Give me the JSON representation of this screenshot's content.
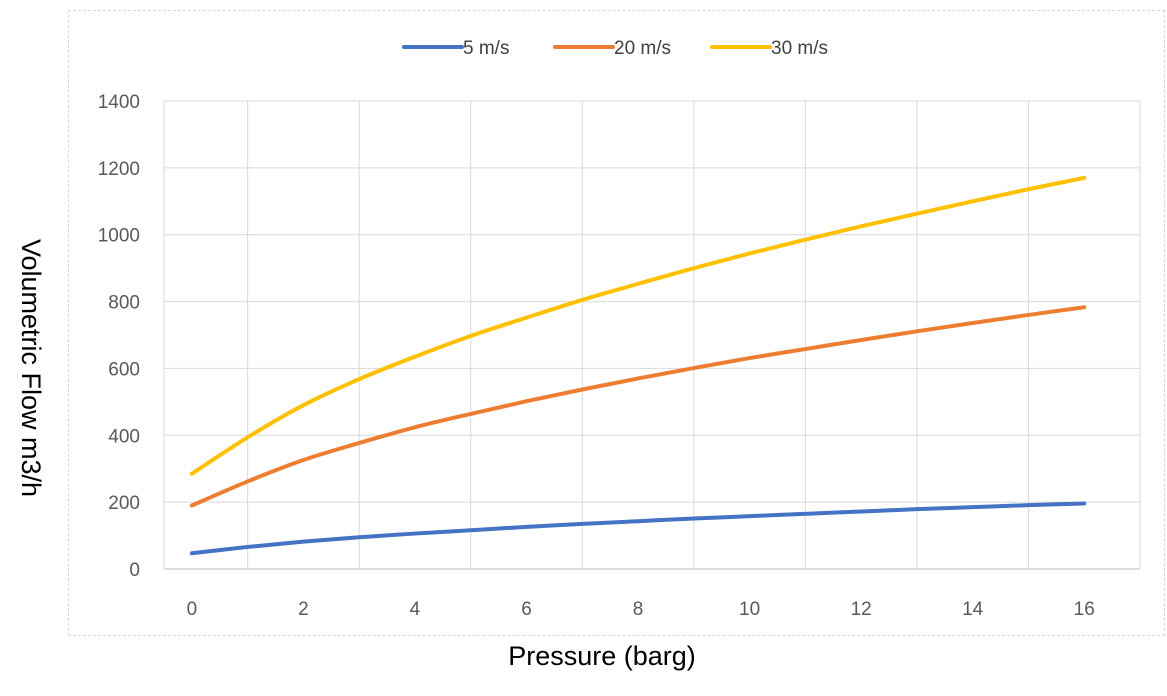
{
  "chart_data": {
    "type": "line",
    "xlabel": "Pressure (barg)",
    "ylabel": "Volumetric Flow m3/h",
    "xlim": [
      -0.5,
      17
    ],
    "ylim": [
      0,
      1400
    ],
    "xticks": [
      0,
      2,
      4,
      6,
      8,
      10,
      12,
      14,
      16
    ],
    "yticks": [
      0,
      200,
      400,
      600,
      800,
      1000,
      1200,
      1400
    ],
    "grid": true,
    "legend_position": "top",
    "x": [
      0,
      1,
      2,
      3,
      4,
      5,
      6,
      7,
      8,
      9,
      10,
      11,
      12,
      13,
      14,
      15,
      16
    ],
    "series": [
      {
        "name": "5 m/s",
        "color": "#4472C4",
        "values": [
          47,
          66,
          82,
          95,
          106,
          116,
          126,
          135,
          143,
          151,
          158,
          165,
          172,
          179,
          185,
          191,
          196
        ]
      },
      {
        "name": "20 m/s",
        "color": "#ED7D31",
        "values": [
          190,
          262,
          326,
          377,
          424,
          464,
          502,
          537,
          570,
          601,
          631,
          658,
          685,
          711,
          736,
          760,
          783
        ]
      },
      {
        "name": "30  m/s",
        "color": "#FFC000",
        "values": [
          285,
          394,
          490,
          568,
          635,
          697,
          752,
          805,
          853,
          900,
          944,
          985,
          1025,
          1063,
          1100,
          1136,
          1170
        ]
      }
    ]
  }
}
